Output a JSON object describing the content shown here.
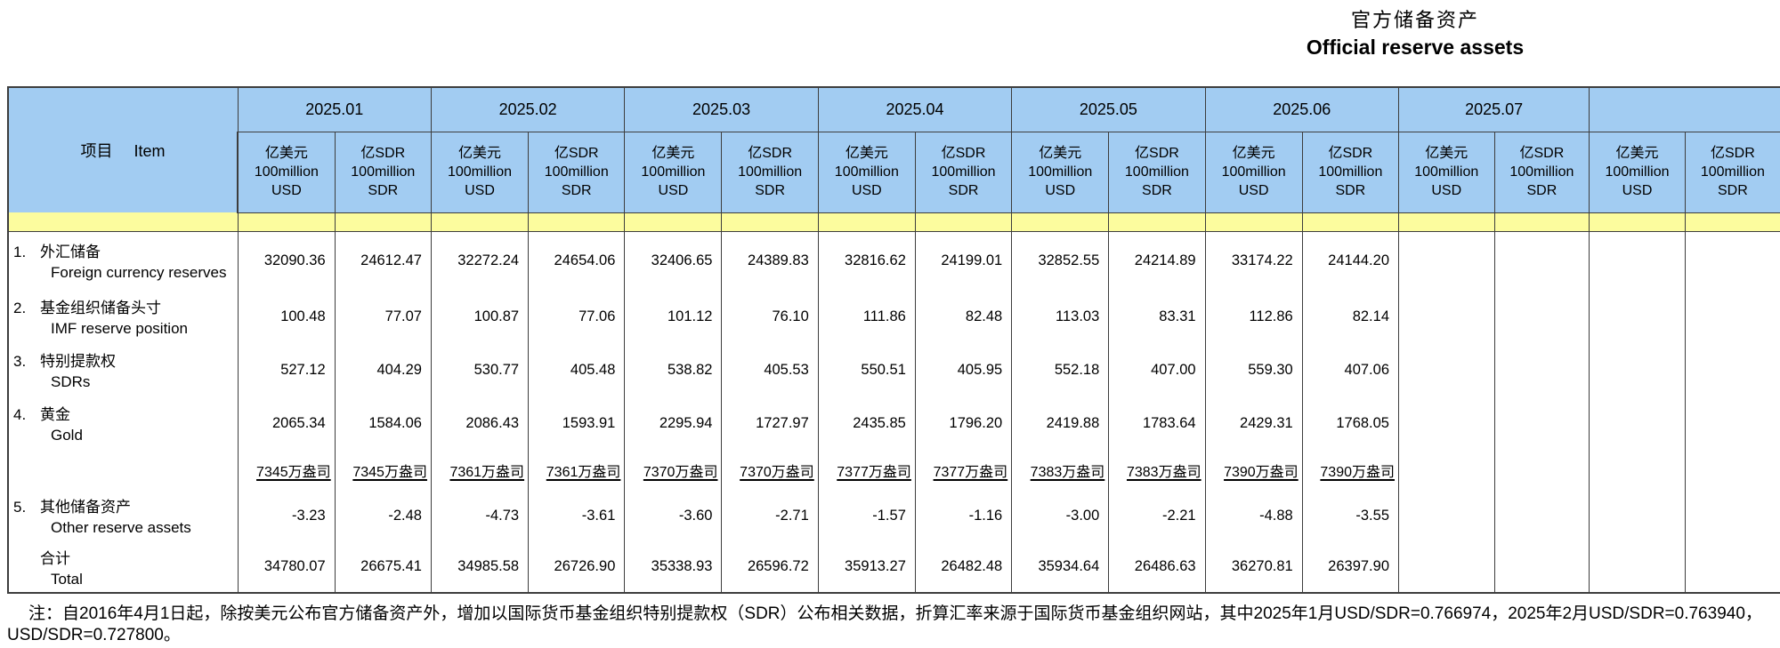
{
  "title": {
    "zh": "官方储备资产",
    "en": "Official reserve assets"
  },
  "table": {
    "item_header_zh": "项目",
    "item_header_en": "Item",
    "usd_subheader": [
      "亿美元",
      "100million",
      "USD"
    ],
    "sdr_subheader": [
      "亿SDR",
      "100million",
      "SDR"
    ],
    "months": [
      {
        "label": "2025.01"
      },
      {
        "label": "2025.02"
      },
      {
        "label": "2025.03"
      },
      {
        "label": "2025.04"
      },
      {
        "label": "2025.05"
      },
      {
        "label": "2025.06"
      },
      {
        "label": "2025.07"
      },
      {
        "label": ""
      }
    ],
    "rows": [
      {
        "key": "foreign-currency-reserves",
        "num": "1.",
        "zh": "外汇储备",
        "en": "Foreign currency reserves",
        "type": "data",
        "values": [
          "32090.36",
          "24612.47",
          "32272.24",
          "24654.06",
          "32406.65",
          "24389.83",
          "32816.62",
          "24199.01",
          "32852.55",
          "24214.89",
          "33174.22",
          "24144.20",
          "",
          "",
          "",
          ""
        ]
      },
      {
        "key": "imf-reserve-position",
        "num": "2.",
        "zh": "基金组织储备头寸",
        "en": "IMF reserve position",
        "type": "data",
        "values": [
          "100.48",
          "77.07",
          "100.87",
          "77.06",
          "101.12",
          "76.10",
          "111.86",
          "82.48",
          "113.03",
          "83.31",
          "112.86",
          "82.14",
          "",
          "",
          "",
          ""
        ]
      },
      {
        "key": "sdrs",
        "num": "3.",
        "zh": "特别提款权",
        "en": "SDRs",
        "type": "data",
        "values": [
          "527.12",
          "404.29",
          "530.77",
          "405.48",
          "538.82",
          "405.53",
          "550.51",
          "405.95",
          "552.18",
          "407.00",
          "559.30",
          "407.06",
          "",
          "",
          "",
          ""
        ]
      },
      {
        "key": "gold",
        "num": "4.",
        "zh": "黄金",
        "en": "Gold",
        "type": "data",
        "values": [
          "2065.34",
          "1584.06",
          "2086.43",
          "1593.91",
          "2295.94",
          "1727.97",
          "2435.85",
          "1796.20",
          "2419.88",
          "1783.64",
          "2429.31",
          "1768.05",
          "",
          "",
          "",
          ""
        ]
      },
      {
        "key": "gold-ounces",
        "num": "",
        "zh": "",
        "en": "",
        "type": "ounces",
        "values": [
          "7345万盎司",
          "7345万盎司",
          "7361万盎司",
          "7361万盎司",
          "7370万盎司",
          "7370万盎司",
          "7377万盎司",
          "7377万盎司",
          "7383万盎司",
          "7383万盎司",
          "7390万盎司",
          "7390万盎司",
          "",
          "",
          "",
          ""
        ]
      },
      {
        "key": "other-reserve-assets",
        "num": "5.",
        "zh": "其他储备资产",
        "en": "Other reserve assets",
        "type": "data",
        "values": [
          "-3.23",
          "-2.48",
          "-4.73",
          "-3.61",
          "-3.60",
          "-2.71",
          "-1.57",
          "-1.16",
          "-3.00",
          "-2.21",
          "-4.88",
          "-3.55",
          "",
          "",
          "",
          ""
        ]
      },
      {
        "key": "total",
        "num": "",
        "zh": "合计",
        "en": "Total",
        "type": "total",
        "values": [
          "34780.07",
          "26675.41",
          "34985.58",
          "26726.90",
          "35338.93",
          "26596.72",
          "35913.27",
          "26482.48",
          "35934.64",
          "26486.63",
          "36270.81",
          "26397.90",
          "",
          "",
          "",
          ""
        ]
      }
    ]
  },
  "note": {
    "line1": "注：自2016年4月1日起，除按美元公布官方储备资产外，增加以国际货币基金组织特别提款权（SDR）公布相关数据，折算汇率来源于国际货币基金组织网站，其中2025年1月USD/SDR=0.766974，2025年2月USD/SDR=0.763940，",
    "line2": "USD/SDR=0.727800。"
  },
  "colors": {
    "header_blue": "#A2CCF2",
    "band_yellow": "#FCFC9E",
    "grid_line": "#3d3d3d"
  }
}
